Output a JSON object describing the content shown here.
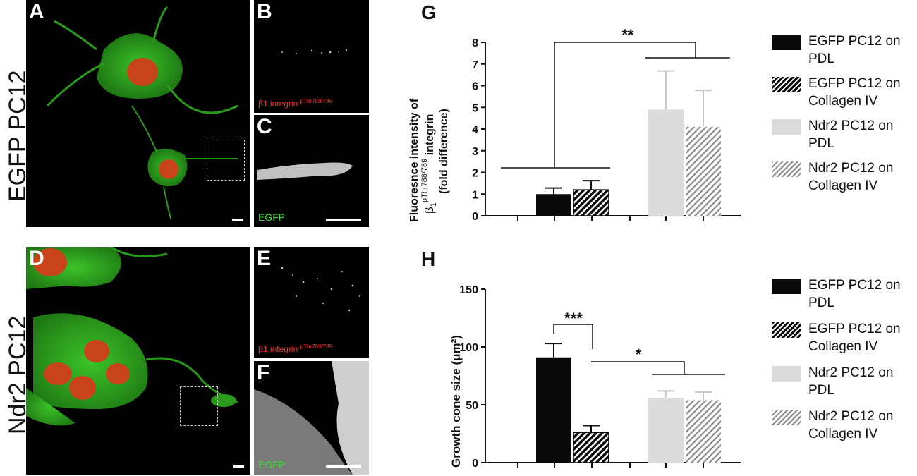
{
  "figure": {
    "rows": [
      {
        "label": "EGFP PC12"
      },
      {
        "label": "Ndr2 PC12"
      }
    ],
    "panels": [
      {
        "letter": "A"
      },
      {
        "letter": "B",
        "channel": "β1 integrin",
        "channel_sup": "pThr788/789"
      },
      {
        "letter": "C",
        "channel": "EGFP"
      },
      {
        "letter": "D"
      },
      {
        "letter": "E",
        "channel": "β1 integrin",
        "channel_sup": "pThr788/789"
      },
      {
        "letter": "F",
        "channel": "EGFP"
      }
    ]
  },
  "legend_items": [
    {
      "label": "EGFP PC12 on PDL",
      "fill": "solid-black"
    },
    {
      "label": "EGFP PC12 on Collagen IV",
      "fill": "hatched-black"
    },
    {
      "label": "Ndr2 PC12 on PDL",
      "fill": "solid-lightgray"
    },
    {
      "label": "Ndr2 PC12 on Collagen IV",
      "fill": "hatched-gray"
    }
  ],
  "colors": {
    "black": "#0a0a0a",
    "light_gray": "#dcdcdc",
    "hatch_gray": "#8a8a8a",
    "cell_green": "#2fae1e",
    "nucleus_red": "#d63a1a"
  },
  "chart_data": [
    {
      "letter": "G",
      "type": "bar",
      "ylabel_line1": "Fluoresnce  intensity of",
      "ylabel_line2_base": "β",
      "ylabel_line2_sub": "1",
      "ylabel_line2_sup": "pThr788/789",
      "ylabel_line2_rest": " integrin",
      "ylabel_line3": "(fold difference)",
      "ylim": [
        0,
        8
      ],
      "yticks": [
        0,
        1,
        2,
        3,
        4,
        5,
        6,
        7,
        8
      ],
      "groups": [
        {
          "bars": [
            {
              "series": 0,
              "value": 1.0,
              "error": 0.28
            },
            {
              "series": 1,
              "value": 1.2,
              "error": 0.42
            }
          ]
        },
        {
          "bars": [
            {
              "series": 2,
              "value": 4.9,
              "error": 1.78
            },
            {
              "series": 3,
              "value": 4.1,
              "error": 1.68
            }
          ]
        }
      ],
      "significance": [
        {
          "label": "**",
          "from": "group1",
          "to": "group2"
        }
      ]
    },
    {
      "letter": "H",
      "type": "bar",
      "ylabel_line1": "Growth cone size (μm²)",
      "ylim": [
        0,
        150
      ],
      "yticks": [
        0,
        50,
        100,
        150
      ],
      "groups": [
        {
          "bars": [
            {
              "series": 0,
              "value": 91,
              "error": 12
            },
            {
              "series": 1,
              "value": 26,
              "error": 6
            }
          ]
        },
        {
          "bars": [
            {
              "series": 2,
              "value": 56,
              "error": 6
            },
            {
              "series": 3,
              "value": 54,
              "error": 7
            }
          ]
        }
      ],
      "significance": [
        {
          "label": "***",
          "from": "series0",
          "to": "series1"
        },
        {
          "label": "*",
          "from": "series1",
          "to": "group2"
        }
      ]
    }
  ]
}
